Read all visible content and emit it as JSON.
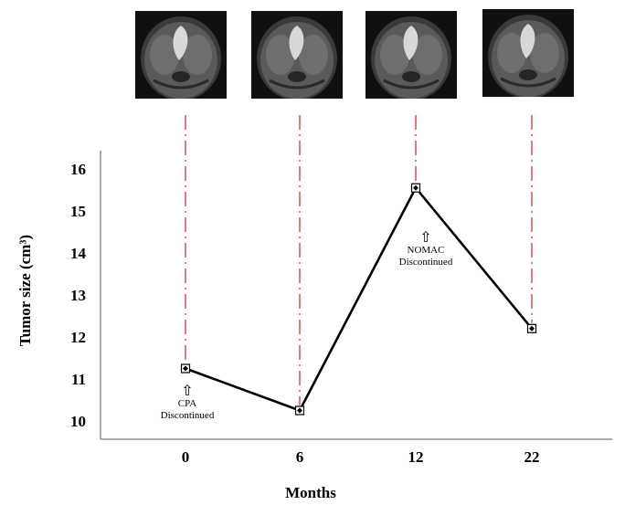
{
  "chart_data": {
    "type": "line",
    "categories": [
      "0",
      "6",
      "12",
      "22"
    ],
    "series": [
      {
        "values": [
          11.25,
          10.25,
          15.55,
          12.2
        ]
      }
    ],
    "xlabel": "Months",
    "ylabel": "Tumor size (cm³)",
    "yticks": [
      "10",
      "11",
      "12",
      "13",
      "14",
      "15",
      "16"
    ],
    "ylim": [
      9.8,
      16.6
    ],
    "grid": false,
    "legend": "none",
    "annotations": [
      {
        "category": "0",
        "line1": "CPA",
        "line2": "Discontinued",
        "arrow": "⇧"
      },
      {
        "category": "12",
        "line1": "NOMAC",
        "line2": "Discontinued",
        "arrow": "⇧"
      }
    ],
    "images": [
      {
        "category": "0",
        "description": "coronal MRI scan"
      },
      {
        "category": "6",
        "description": "coronal MRI scan"
      },
      {
        "category": "12",
        "description": "coronal MRI scan"
      },
      {
        "category": "22",
        "description": "coronal MRI scan"
      }
    ],
    "colors": {
      "line": "#000000",
      "guide": "#c0272d",
      "axis": "#555555"
    }
  }
}
